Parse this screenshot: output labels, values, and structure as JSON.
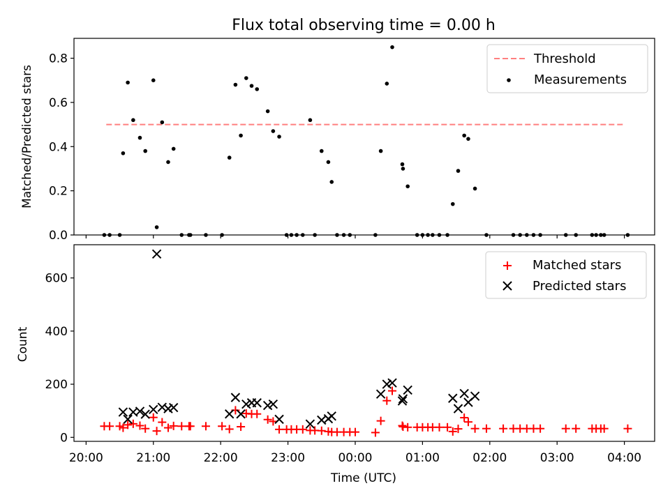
{
  "chart_data": [
    {
      "type": "scatter",
      "title": "Flux total observing time = 0.00 h",
      "ylabel": "Matched/Predicted stars",
      "ylim": [
        0,
        0.89
      ],
      "yticks": [
        "0.0",
        "0.2",
        "0.4",
        "0.6",
        "0.8"
      ],
      "ytick_values": [
        0,
        0.2,
        0.4,
        0.6,
        0.8
      ],
      "legend_position": "top-right",
      "threshold": {
        "name": "Threshold",
        "value": 0.5,
        "x_start": 20.3,
        "x_end": 28.0,
        "color": "#ff7f7f"
      },
      "series": [
        {
          "name": "Measurements",
          "color": "#000000",
          "points": [
            [
              20.27,
              0.0
            ],
            [
              20.35,
              0.0
            ],
            [
              20.5,
              0.0
            ],
            [
              20.55,
              0.37
            ],
            [
              20.62,
              0.69
            ],
            [
              20.7,
              0.52
            ],
            [
              20.8,
              0.44
            ],
            [
              20.88,
              0.38
            ],
            [
              21.0,
              0.7
            ],
            [
              21.05,
              0.035
            ],
            [
              21.13,
              0.51
            ],
            [
              21.22,
              0.33
            ],
            [
              21.3,
              0.39
            ],
            [
              21.42,
              0.0
            ],
            [
              21.53,
              0.0
            ],
            [
              21.55,
              0.0
            ],
            [
              21.78,
              0.0
            ],
            [
              22.02,
              0.0
            ],
            [
              22.13,
              0.35
            ],
            [
              22.22,
              0.68
            ],
            [
              22.3,
              0.45
            ],
            [
              22.38,
              0.71
            ],
            [
              22.46,
              0.675
            ],
            [
              22.54,
              0.66
            ],
            [
              22.7,
              0.56
            ],
            [
              22.78,
              0.47
            ],
            [
              22.87,
              0.445
            ],
            [
              22.98,
              0.0
            ],
            [
              23.05,
              0.0
            ],
            [
              23.13,
              0.0
            ],
            [
              23.22,
              0.0
            ],
            [
              23.33,
              0.52
            ],
            [
              23.4,
              0.0
            ],
            [
              23.5,
              0.38
            ],
            [
              23.6,
              0.33
            ],
            [
              23.65,
              0.24
            ],
            [
              23.73,
              0.0
            ],
            [
              23.83,
              0.0
            ],
            [
              23.92,
              0.0
            ],
            [
              24.3,
              0.0
            ],
            [
              24.38,
              0.38
            ],
            [
              24.47,
              0.685
            ],
            [
              24.55,
              0.85
            ],
            [
              24.7,
              0.32
            ],
            [
              24.71,
              0.3
            ],
            [
              24.78,
              0.22
            ],
            [
              24.92,
              0.0
            ],
            [
              25.0,
              0.0
            ],
            [
              25.08,
              0.0
            ],
            [
              25.15,
              0.0
            ],
            [
              25.25,
              0.0
            ],
            [
              25.37,
              0.0
            ],
            [
              25.45,
              0.14
            ],
            [
              25.53,
              0.29
            ],
            [
              25.62,
              0.45
            ],
            [
              25.68,
              0.435
            ],
            [
              25.78,
              0.21
            ],
            [
              25.95,
              0.0
            ],
            [
              26.35,
              0.0
            ],
            [
              26.45,
              0.0
            ],
            [
              26.55,
              0.0
            ],
            [
              26.65,
              0.0
            ],
            [
              26.75,
              0.0
            ],
            [
              27.13,
              0.0
            ],
            [
              27.28,
              0.0
            ],
            [
              27.52,
              0.0
            ],
            [
              27.58,
              0.0
            ],
            [
              27.65,
              0.0
            ],
            [
              27.7,
              0.0
            ],
            [
              28.05,
              0.0
            ]
          ]
        }
      ]
    },
    {
      "type": "scatter",
      "xlabel": "Time (UTC)",
      "ylabel": "Count",
      "xlim": [
        19.82,
        28.45
      ],
      "ylim": [
        -15,
        725
      ],
      "xticks": [
        "20:00",
        "21:00",
        "22:00",
        "23:00",
        "00:00",
        "01:00",
        "02:00",
        "03:00",
        "04:00"
      ],
      "xtick_values": [
        20,
        21,
        22,
        23,
        24,
        25,
        26,
        27,
        28
      ],
      "yticks": [
        "0",
        "200",
        "400",
        "600"
      ],
      "ytick_values": [
        0,
        200,
        400,
        600
      ],
      "legend_position": "top-right",
      "series": [
        {
          "name": "Matched stars",
          "marker": "plus",
          "color": "#ff0000",
          "points": [
            [
              20.27,
              42
            ],
            [
              20.35,
              42
            ],
            [
              20.5,
              42
            ],
            [
              20.55,
              36
            ],
            [
              20.62,
              47
            ],
            [
              20.7,
              51
            ],
            [
              20.8,
              44
            ],
            [
              20.88,
              33
            ],
            [
              21.0,
              75
            ],
            [
              21.05,
              24
            ],
            [
              21.13,
              57
            ],
            [
              21.22,
              36
            ],
            [
              21.3,
              43
            ],
            [
              21.42,
              42
            ],
            [
              21.53,
              42
            ],
            [
              21.55,
              42
            ],
            [
              21.78,
              42
            ],
            [
              22.02,
              42
            ],
            [
              22.13,
              31
            ],
            [
              22.22,
              102
            ],
            [
              22.3,
              40
            ],
            [
              22.38,
              90
            ],
            [
              22.46,
              88
            ],
            [
              22.54,
              88
            ],
            [
              22.7,
              67
            ],
            [
              22.78,
              60
            ],
            [
              22.87,
              30
            ],
            [
              22.98,
              30
            ],
            [
              23.05,
              30
            ],
            [
              23.13,
              30
            ],
            [
              23.22,
              30
            ],
            [
              23.33,
              26
            ],
            [
              23.4,
              26
            ],
            [
              23.5,
              25
            ],
            [
              23.6,
              22
            ],
            [
              23.65,
              20
            ],
            [
              23.73,
              20
            ],
            [
              23.83,
              20
            ],
            [
              23.92,
              20
            ],
            [
              24.0,
              20
            ],
            [
              24.3,
              18
            ],
            [
              24.38,
              62
            ],
            [
              24.47,
              138
            ],
            [
              24.55,
              175
            ],
            [
              24.7,
              44
            ],
            [
              24.71,
              40
            ],
            [
              24.78,
              38
            ],
            [
              24.92,
              38
            ],
            [
              25.0,
              38
            ],
            [
              25.08,
              38
            ],
            [
              25.15,
              38
            ],
            [
              25.25,
              38
            ],
            [
              25.37,
              38
            ],
            [
              25.45,
              22
            ],
            [
              25.53,
              32
            ],
            [
              25.62,
              74
            ],
            [
              25.68,
              58
            ],
            [
              25.78,
              33
            ],
            [
              25.95,
              33
            ],
            [
              26.2,
              33
            ],
            [
              26.35,
              33
            ],
            [
              26.45,
              33
            ],
            [
              26.55,
              33
            ],
            [
              26.65,
              33
            ],
            [
              26.75,
              33
            ],
            [
              27.13,
              33
            ],
            [
              27.28,
              33
            ],
            [
              27.52,
              33
            ],
            [
              27.58,
              33
            ],
            [
              27.65,
              33
            ],
            [
              27.7,
              33
            ],
            [
              28.05,
              33
            ]
          ]
        },
        {
          "name": "Predicted stars",
          "marker": "x",
          "color": "#000000",
          "points": [
            [
              20.55,
              95
            ],
            [
              20.62,
              68
            ],
            [
              20.7,
              95
            ],
            [
              20.8,
              98
            ],
            [
              20.88,
              87
            ],
            [
              21.0,
              105
            ],
            [
              21.05,
              690
            ],
            [
              21.13,
              113
            ],
            [
              21.22,
              108
            ],
            [
              21.3,
              112
            ],
            [
              22.13,
              88
            ],
            [
              22.22,
              150
            ],
            [
              22.3,
              88
            ],
            [
              22.38,
              125
            ],
            [
              22.46,
              130
            ],
            [
              22.54,
              130
            ],
            [
              22.7,
              120
            ],
            [
              22.78,
              125
            ],
            [
              22.87,
              68
            ],
            [
              23.33,
              50
            ],
            [
              23.5,
              65
            ],
            [
              23.6,
              70
            ],
            [
              23.65,
              80
            ],
            [
              24.38,
              163
            ],
            [
              24.47,
              200
            ],
            [
              24.55,
              205
            ],
            [
              24.7,
              137
            ],
            [
              24.71,
              145
            ],
            [
              24.78,
              178
            ],
            [
              25.45,
              147
            ],
            [
              25.53,
              108
            ],
            [
              25.62,
              165
            ],
            [
              25.68,
              132
            ],
            [
              25.78,
              155
            ]
          ]
        }
      ]
    }
  ]
}
